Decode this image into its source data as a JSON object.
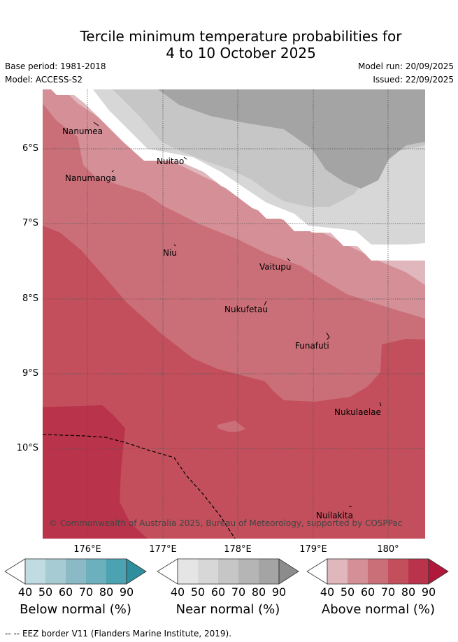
{
  "title_line1": "Tercile minimum temperature probabilities for",
  "title_line2": "4 to 10 October 2025",
  "base_period": "Base period: 1981-2018",
  "model": "Model: ACCESS-S2",
  "model_run": "Model run: 20/09/2025",
  "issued": "Issued: 22/09/2025",
  "lat_labels": [
    "6°S",
    "7°S",
    "8°S",
    "9°S",
    "10°S"
  ],
  "lon_labels": [
    "176°E",
    "177°E",
    "178°E",
    "179°E",
    "180°"
  ],
  "places": [
    "Nanumea",
    "Nuitao",
    "Nanumanga",
    "Niu",
    "Vaitupu",
    "Nukufetau",
    "Funafuti",
    "Nukulaelae",
    "Nuilakita"
  ],
  "copyright": "© Commonwealth of Australia 2025, Bureau of Meteorology, supported by COSPPac",
  "colorbars": [
    {
      "title": "Below normal (%)",
      "ticks": [
        "40",
        "50",
        "60",
        "70",
        "80",
        "90"
      ],
      "colors": [
        "#ffffff",
        "#c1dbe3",
        "#a7cbd3",
        "#8bbac6",
        "#6cb0bd",
        "#4ba2b1",
        "#2f8e9e"
      ]
    },
    {
      "title": "Near normal (%)",
      "ticks": [
        "40",
        "50",
        "60",
        "70",
        "80",
        "90"
      ],
      "colors": [
        "#ffffff",
        "#e5e5e5",
        "#d7d7d7",
        "#c6c6c6",
        "#b5b5b5",
        "#a4a4a4",
        "#8c8c8c"
      ]
    },
    {
      "title": "Above normal (%)",
      "ticks": [
        "40",
        "50",
        "60",
        "70",
        "80",
        "90"
      ],
      "colors": [
        "#ffffff",
        "#e0b7bc",
        "#d58f97",
        "#ca6f78",
        "#c24f5b",
        "#b9334a",
        "#b0193a"
      ]
    }
  ],
  "footer": "-- EEZ border V11 (Flanders Marine Institute, 2019)."
}
